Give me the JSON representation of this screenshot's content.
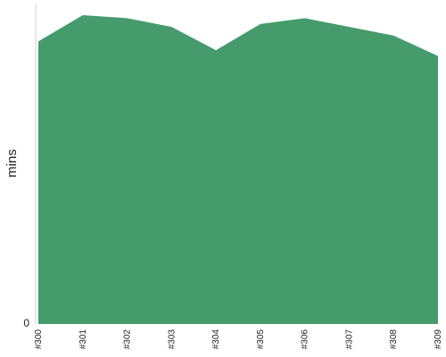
{
  "chart_data": {
    "type": "area",
    "categories": [
      "#300",
      "#301",
      "#302",
      "#303",
      "#304",
      "#305",
      "#306",
      "#307",
      "#308",
      "#309"
    ],
    "series": [
      {
        "values": [
          97,
          106,
          105,
          102,
          94,
          103,
          105,
          102,
          99,
          92
        ]
      }
    ],
    "title": "",
    "xlabel": "",
    "ylabel": "mins",
    "ylim": [
      0,
      110
    ],
    "yticks": [
      0
    ],
    "grid": false,
    "legend": "none",
    "colors": {
      "area": "#459b6b",
      "axis": "#d0d0d0",
      "text": "#222222"
    }
  }
}
